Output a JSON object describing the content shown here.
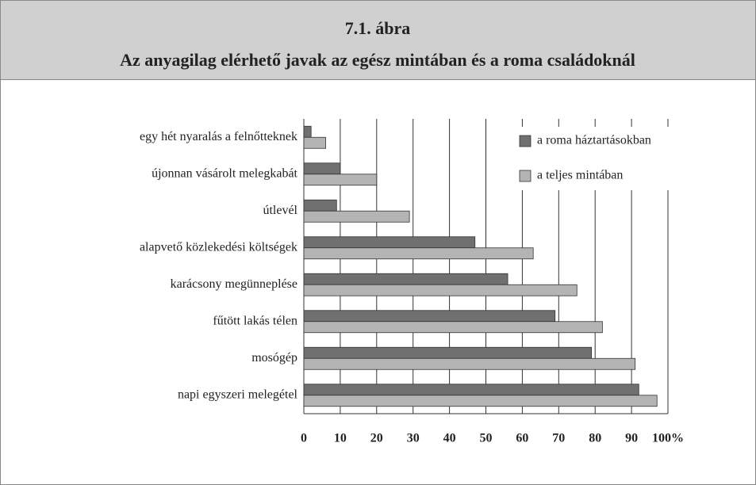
{
  "chart_data": {
    "type": "bar",
    "orientation": "horizontal",
    "title": "7.1. ábra",
    "subtitle": "Az anyagilag elérhető javak az egész mintában és a roma családoknál",
    "categories": [
      "egy hét nyaralás a felnőtteknek",
      "újonnan vásárolt melegkabát",
      "útlevél",
      "alapvető közlekedési költségek",
      "karácsony megünneplése",
      "fűtött lakás télen",
      "mosógép",
      "napi egyszeri melegétel"
    ],
    "series": [
      {
        "name": "a roma háztartásokban",
        "color": "#707070",
        "values": [
          2,
          10,
          9,
          47,
          56,
          69,
          79,
          92
        ]
      },
      {
        "name": "a teljes mintában",
        "color": "#b4b4b4",
        "values": [
          6,
          20,
          29,
          63,
          75,
          82,
          91,
          97
        ]
      }
    ],
    "xlim": [
      0,
      100
    ],
    "xticks": [
      0,
      10,
      20,
      30,
      40,
      50,
      60,
      70,
      80,
      90,
      {
        "value": 100,
        "label": "100%"
      }
    ],
    "grid": true,
    "legend": "upper right"
  }
}
